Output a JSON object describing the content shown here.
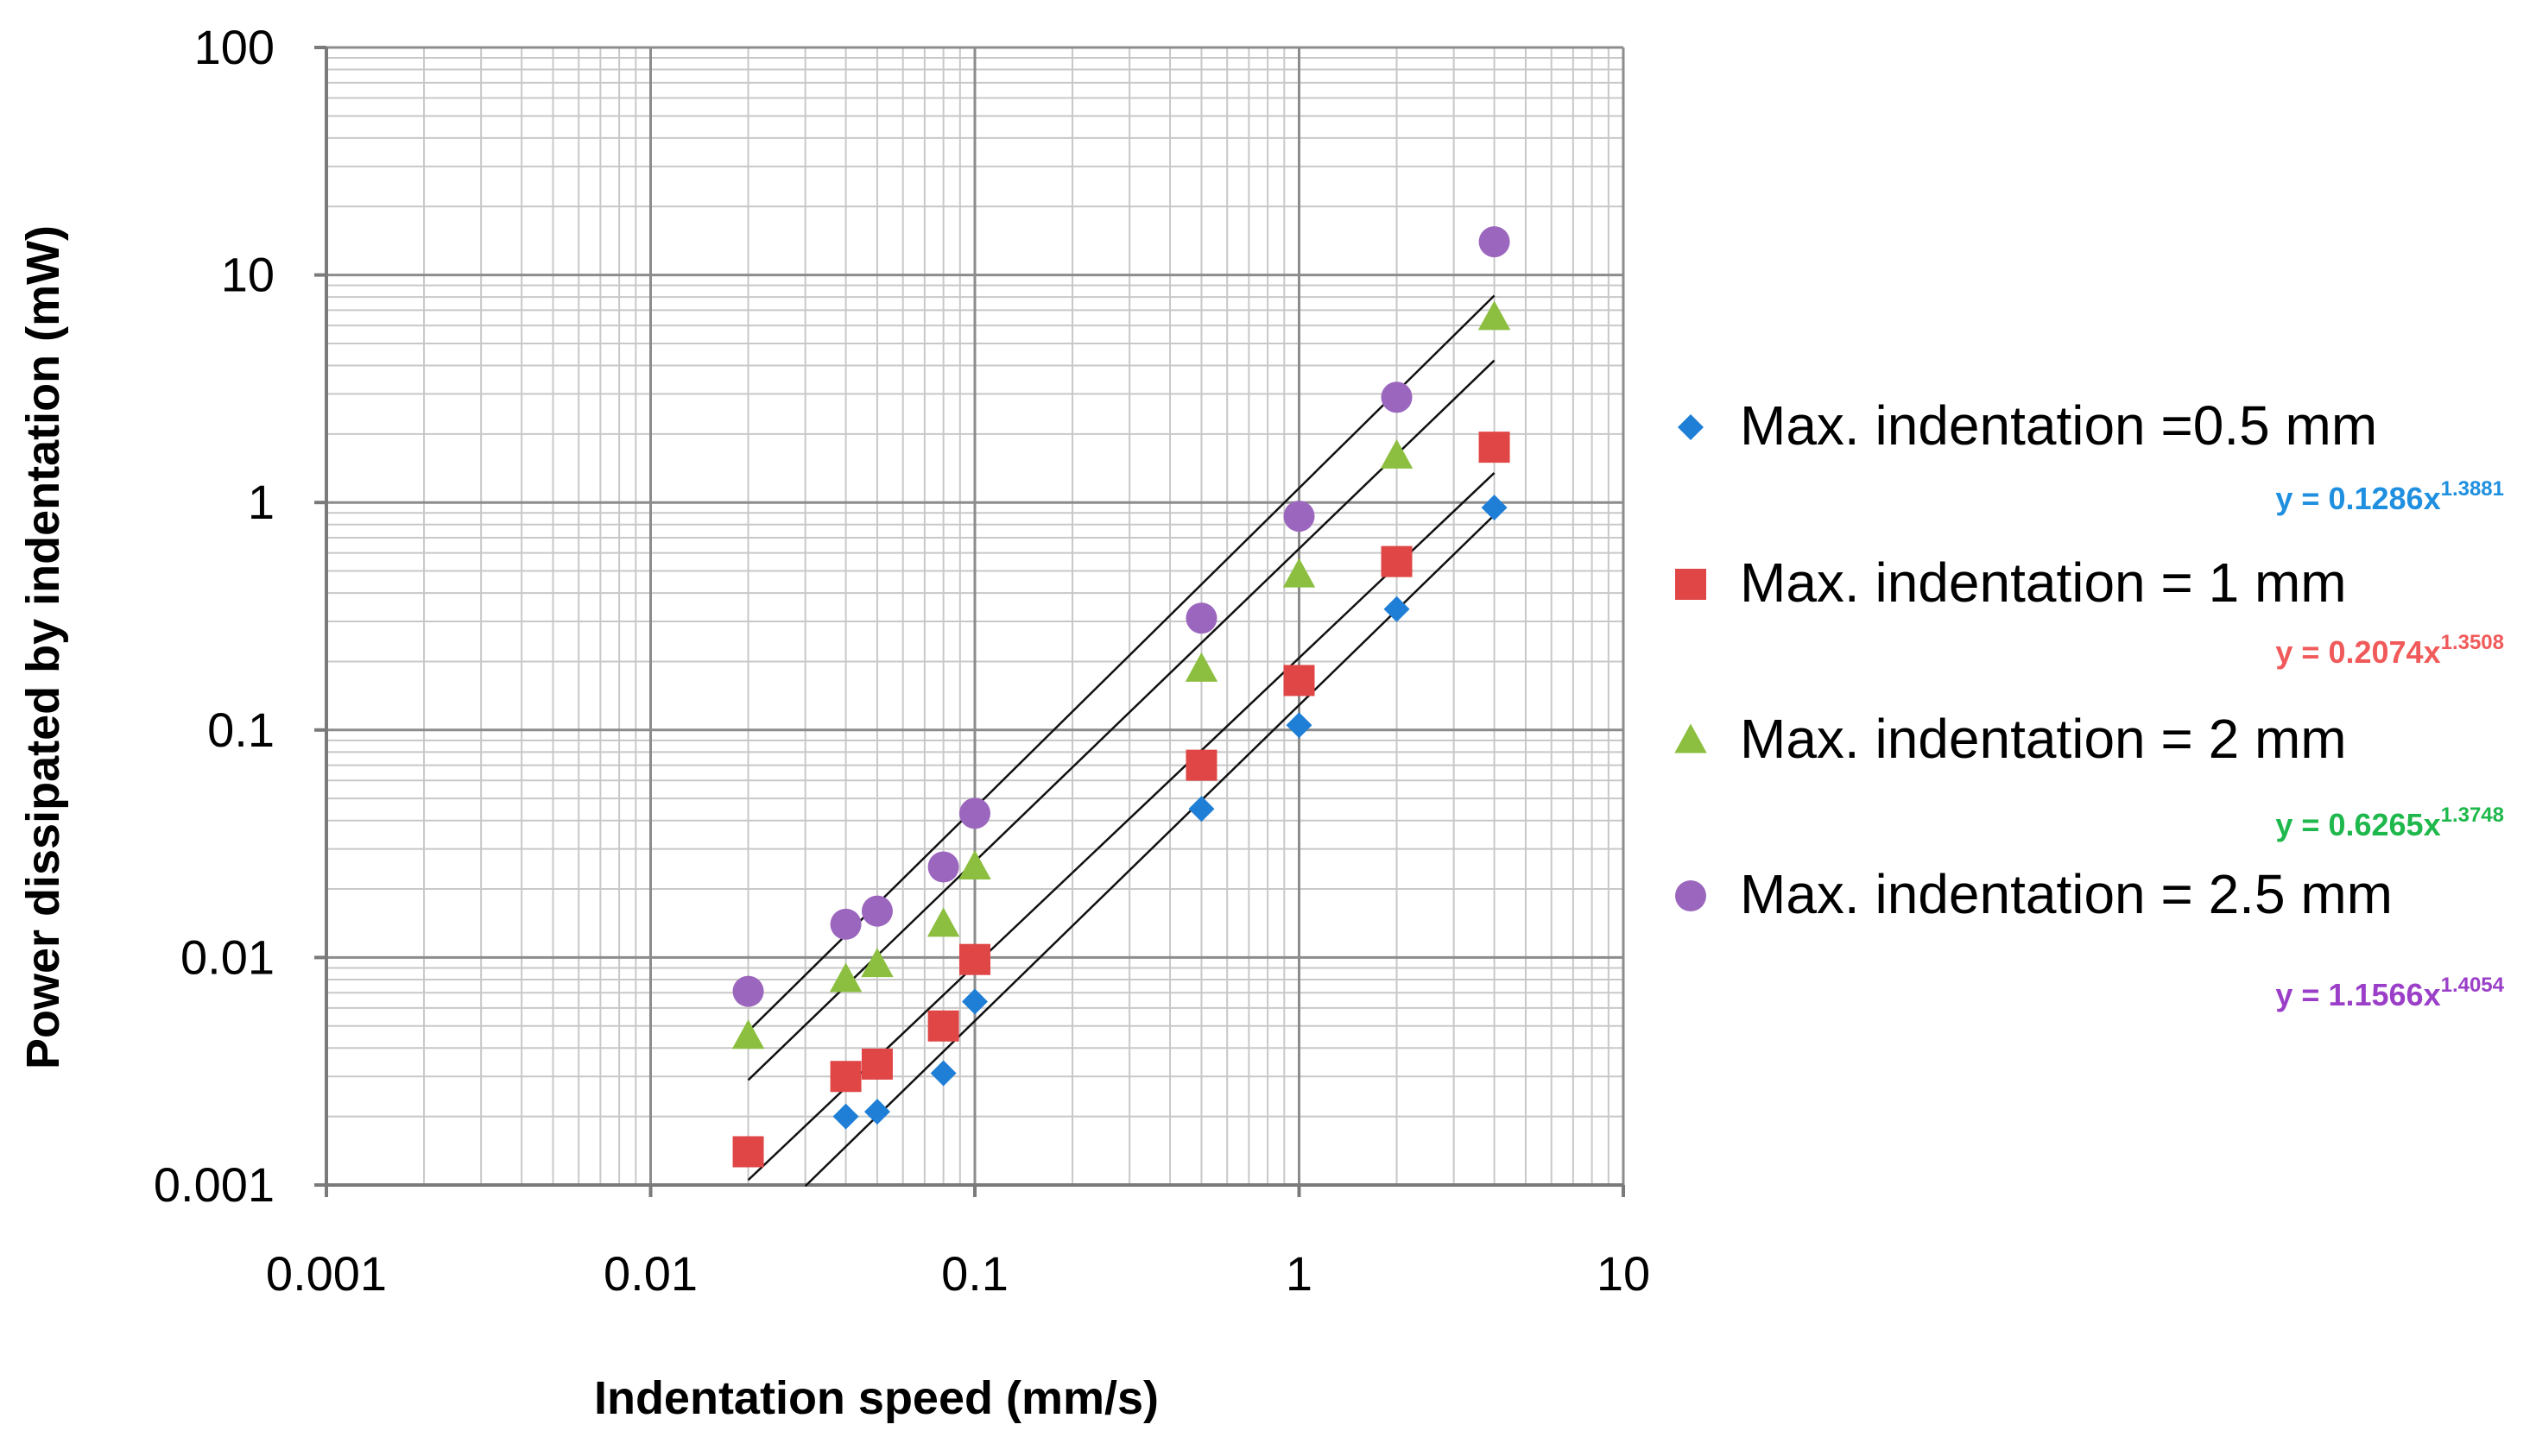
{
  "chart_data": {
    "type": "scatter",
    "xscale": "log",
    "yscale": "log",
    "xlabel": "Indentation speed  (mm/s)",
    "ylabel": "Power  dissipated by indentation  (mW)",
    "xlim": [
      0.001,
      10
    ],
    "ylim": [
      0.001,
      100
    ],
    "grid": true,
    "legend_position": "right",
    "x_ticks": [
      0.001,
      0.01,
      0.1,
      1,
      10
    ],
    "x_tick_labels": [
      "0.001",
      "0.01",
      "0.1",
      "1",
      "10"
    ],
    "y_ticks": [
      0.001,
      0.01,
      0.1,
      1,
      10,
      100
    ],
    "y_tick_labels": [
      "0.001",
      "0.01",
      "0.1",
      "1",
      "10",
      "100"
    ],
    "series": [
      {
        "name": "Max. indentation =0.5 mm",
        "marker": "diamond",
        "color": "#1f7fd6",
        "x": [
          0.04,
          0.05,
          0.08,
          0.1,
          0.5,
          1,
          2,
          4
        ],
        "y": [
          0.002,
          0.0021,
          0.0031,
          0.0064,
          0.045,
          0.105,
          0.34,
          0.95
        ],
        "fit": {
          "coef": 0.1286,
          "exp": 1.3881,
          "x_range": [
            0.03,
            4
          ]
        },
        "equation_prefix": "y = 0.1286x",
        "equation_exp": "1.3881",
        "equation_color": "#1f8fe0"
      },
      {
        "name": "Max. indentation = 1 mm",
        "marker": "square",
        "color": "#e04646",
        "x": [
          0.02,
          0.04,
          0.05,
          0.08,
          0.1,
          0.5,
          1,
          2,
          4
        ],
        "y": [
          0.0014,
          0.003,
          0.0034,
          0.005,
          0.0098,
          0.07,
          0.165,
          0.55,
          1.75
        ],
        "fit": {
          "coef": 0.2074,
          "exp": 1.3508,
          "x_range": [
            0.02,
            4
          ]
        },
        "equation_prefix": "y = 0.2074x",
        "equation_exp": "1.3508",
        "equation_color": "#f05a5a"
      },
      {
        "name": "Max. indentation = 2 mm",
        "marker": "triangle",
        "color": "#8cbf3f",
        "x": [
          0.02,
          0.04,
          0.05,
          0.08,
          0.1,
          0.5,
          1,
          2,
          4
        ],
        "y": [
          0.0045,
          0.008,
          0.0093,
          0.014,
          0.025,
          0.185,
          0.48,
          1.6,
          6.5
        ],
        "fit": {
          "coef": 0.6265,
          "exp": 1.3748,
          "x_range": [
            0.02,
            4
          ]
        },
        "equation_prefix": "y = 0.6265x",
        "equation_exp": "1.3748",
        "equation_color": "#1fb84c"
      },
      {
        "name": "Max. indentation = 2.5 mm",
        "marker": "circle",
        "color": "#9b66bd",
        "x": [
          0.02,
          0.04,
          0.05,
          0.08,
          0.1,
          0.5,
          1,
          2,
          4
        ],
        "y": [
          0.0071,
          0.014,
          0.016,
          0.025,
          0.043,
          0.31,
          0.87,
          2.9,
          14
        ],
        "fit": {
          "coef": 1.1566,
          "exp": 1.4054,
          "x_range": [
            0.02,
            4
          ]
        },
        "equation_prefix": "y = 1.1566x",
        "equation_exp": "1.4054",
        "equation_color": "#9b3fc8"
      }
    ]
  }
}
